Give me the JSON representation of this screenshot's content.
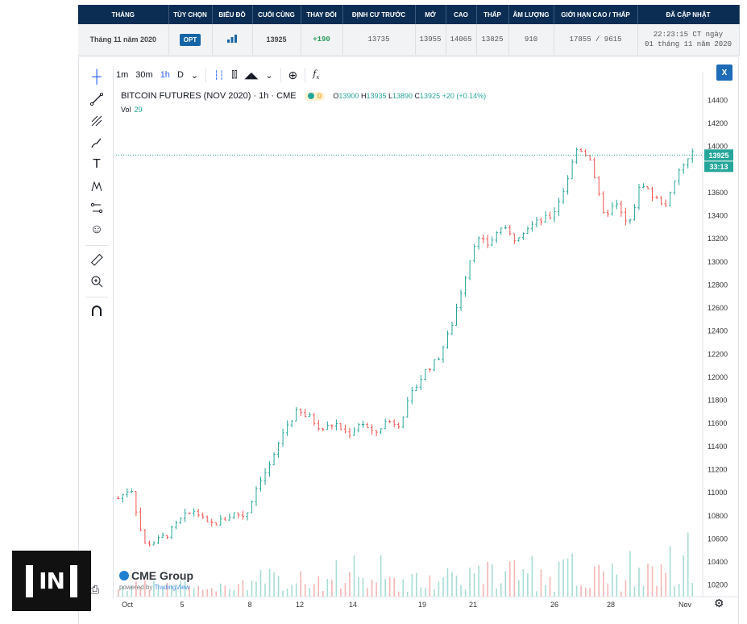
{
  "quote_table": {
    "headers": [
      "THÁNG",
      "TÙY CHỌN",
      "BIỂU ĐỒ",
      "CUỐI CÙNG",
      "THAY ĐỔI",
      "ĐỊNH CƯ TRƯỚC",
      "MỞ",
      "CAO",
      "THẤP",
      "ÂM LƯỢNG",
      "GIỚI HẠN CAO / THẤP",
      "ĐÃ CẬP NHẬT"
    ],
    "row": {
      "month": "Tháng 11 năm 2020",
      "option": "OPT",
      "chart_icon": "bar-chart-icon",
      "last": "13925",
      "change": "+190",
      "prior_settle": "13735",
      "open": "13955",
      "high": "14065",
      "low": "13825",
      "volume": "910",
      "limits": "17855 / 9615",
      "updated_line1": "22:23:15 CT ngày",
      "updated_line2": "01 tháng 11 năm 2020"
    }
  },
  "chart_header": {
    "intervals": [
      "1m",
      "30m",
      "1h",
      "D"
    ],
    "active_interval": "1h",
    "close_label": "X",
    "symbol": "BITCOIN FUTURES (NOV 2020) · 1h · CME",
    "flag": "D",
    "ohlc": {
      "o_label": "O",
      "o": "13900",
      "h_label": "H",
      "h": "13935",
      "l_label": "L",
      "l": "13890",
      "c_label": "C",
      "c": "13925",
      "chg": "+20 (+0.14%)"
    },
    "vol_label": "Vol",
    "vol_value": "29"
  },
  "toolbar_icons": [
    "crosshair-icon",
    "trend-line-icon",
    "pitchfork-icon",
    "brush-icon",
    "text-icon",
    "pattern-icon",
    "measure-icon",
    "emoji-icon",
    "ruler-icon",
    "zoom-icon",
    "magnet-icon"
  ],
  "branding": {
    "cme": "CME Group",
    "powered": "powered by ",
    "tv": "TradingView"
  },
  "watermark_logo": "[IN]",
  "colors": {
    "up": "#26a69a",
    "down": "#ef5350",
    "header": "#0b2d53",
    "accent": "#2962ff"
  },
  "chart_data": {
    "type": "candlestick",
    "title": "BITCOIN FUTURES (NOV 2020) · 1h · CME",
    "x_ticks": [
      "Oct",
      "5",
      "8",
      "12",
      "14",
      "19",
      "21",
      "26",
      "28",
      "Nov"
    ],
    "y_ticks": [
      10200,
      10400,
      10600,
      10800,
      11000,
      11200,
      11400,
      11600,
      11800,
      12000,
      12200,
      12400,
      12600,
      12800,
      13000,
      13200,
      13400,
      13600,
      13800,
      14000,
      14200,
      14400
    ],
    "ylim": [
      10100,
      14500
    ],
    "last_price": 13925,
    "countdown": "33:13",
    "close_path": [
      [
        0,
        10950
      ],
      [
        1,
        11050
      ],
      [
        2,
        10550
      ],
      [
        3,
        10580
      ],
      [
        4,
        10650
      ],
      [
        5,
        10780
      ],
      [
        6,
        10850
      ],
      [
        7,
        10720
      ],
      [
        8,
        10750
      ],
      [
        9,
        10820
      ],
      [
        10,
        10800
      ],
      [
        11,
        11100
      ],
      [
        12,
        11250
      ],
      [
        13,
        11550
      ],
      [
        14,
        11700
      ],
      [
        15,
        11650
      ],
      [
        16,
        11550
      ],
      [
        17,
        11600
      ],
      [
        18,
        11500
      ],
      [
        19,
        11620
      ],
      [
        20,
        11500
      ],
      [
        21,
        11620
      ],
      [
        22,
        11600
      ],
      [
        23,
        11850
      ],
      [
        24,
        12050
      ],
      [
        25,
        12150
      ],
      [
        26,
        12400
      ],
      [
        27,
        12800
      ],
      [
        28,
        13200
      ],
      [
        29,
        13150
      ],
      [
        30,
        13300
      ],
      [
        31,
        13200
      ],
      [
        32,
        13300
      ],
      [
        33,
        13350
      ],
      [
        34,
        13400
      ],
      [
        35,
        13650
      ],
      [
        36,
        14000
      ],
      [
        37,
        13900
      ],
      [
        38,
        13400
      ],
      [
        39,
        13500
      ],
      [
        40,
        13300
      ],
      [
        41,
        13700
      ],
      [
        42,
        13550
      ],
      [
        43,
        13500
      ],
      [
        44,
        13800
      ],
      [
        45,
        13925
      ]
    ],
    "bars": 130
  }
}
